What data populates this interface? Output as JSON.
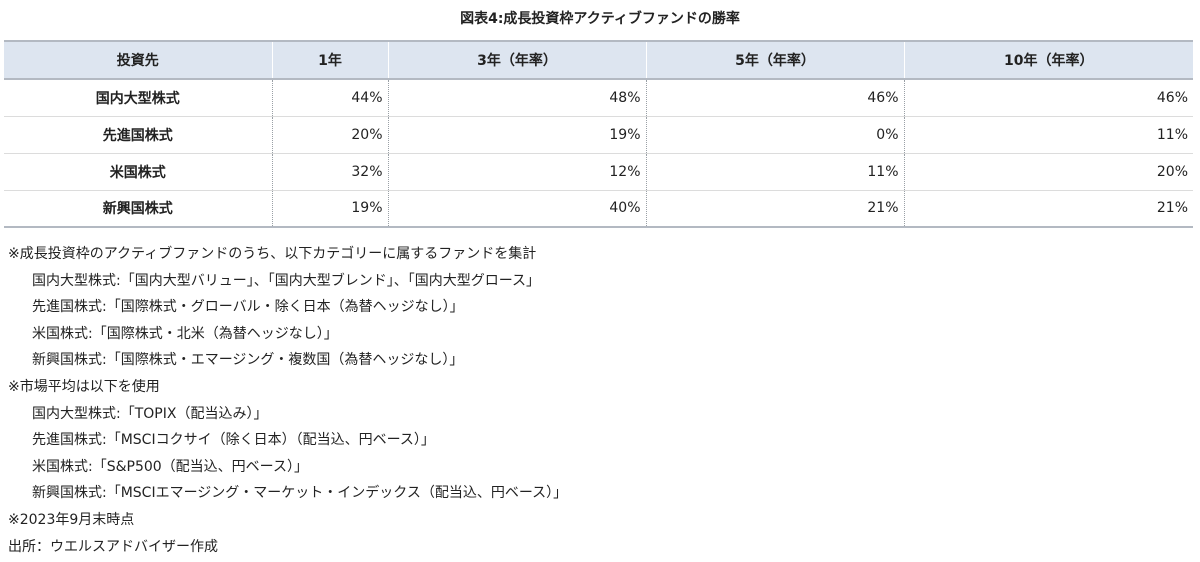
{
  "title": "図表4:成長投資枠アクティブファンドの勝率",
  "table": {
    "headers": [
      "投資先",
      "1年",
      "3年（年率）",
      "5年（年率）",
      "10年（年率）"
    ],
    "rows": [
      {
        "label": "国内大型株式",
        "values": [
          "44%",
          "48%",
          "46%",
          "46%"
        ]
      },
      {
        "label": "先進国株式",
        "values": [
          "20%",
          "19%",
          "0%",
          "11%"
        ]
      },
      {
        "label": "米国株式",
        "values": [
          "32%",
          "12%",
          "11%",
          "20%"
        ]
      },
      {
        "label": "新興国株式",
        "values": [
          "19%",
          "40%",
          "21%",
          "21%"
        ]
      }
    ]
  },
  "notes": {
    "lines": [
      "※成長投資枠のアクティブファンドのうち、以下カテゴリーに属するファンドを集計",
      "国内大型株式:「国内大型バリュー」、「国内大型ブレンド」、「国内大型グロース」",
      "先進国株式:「国際株式・グローバル・除く日本（為替ヘッジなし）」",
      "米国株式:「国際株式・北米（為替ヘッジなし）」",
      "新興国株式:「国際株式・エマージング・複数国（為替ヘッジなし）」",
      "※市場平均は以下を使用",
      "国内大型株式:「TOPIX（配当込み）」",
      "先進国株式:「MSCIコクサイ（除く日本）（配当込、円ベース）」",
      "米国株式:「S&P500（配当込、円ベース）」",
      "新興国株式:「MSCIエマージング・マーケット・インデックス（配当込、円ベース）」",
      "※2023年9月末時点",
      "出所：ウエルスアドバイザー作成"
    ]
  }
}
